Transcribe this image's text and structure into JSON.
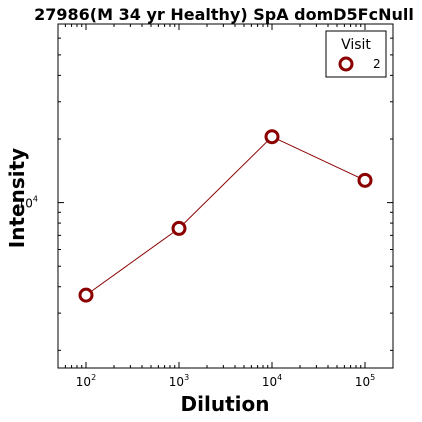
{
  "chart_data": {
    "type": "line",
    "title": "27986(M 34 yr Healthy) SpA domD5FcNull",
    "xlabel": "Dilution",
    "ylabel": "Intensity",
    "xscale": "log",
    "yscale": "log",
    "xlim": [
      50,
      200000
    ],
    "ylim": [
      1650,
      70000
    ],
    "x_ticks": [
      {
        "base": "10",
        "exp": "2",
        "value": 100
      },
      {
        "base": "10",
        "exp": "3",
        "value": 1000
      },
      {
        "base": "10",
        "exp": "4",
        "value": 10000
      },
      {
        "base": "10",
        "exp": "5",
        "value": 100000
      }
    ],
    "y_ticks": [
      {
        "base": "10",
        "exp": "4",
        "value": 10000
      }
    ],
    "y_minor_ticks": [
      2000,
      3000,
      4000,
      5000,
      6000,
      7000,
      8000,
      9000,
      20000,
      30000,
      40000,
      50000,
      60000
    ],
    "legend": {
      "title": "Visit",
      "position": "top-right"
    },
    "series": [
      {
        "name": "2",
        "color": "#8b0000",
        "x": [
          100,
          1000,
          10000,
          100000
        ],
        "y": [
          3650,
          7550,
          20500,
          12750
        ]
      }
    ],
    "grid": false
  }
}
